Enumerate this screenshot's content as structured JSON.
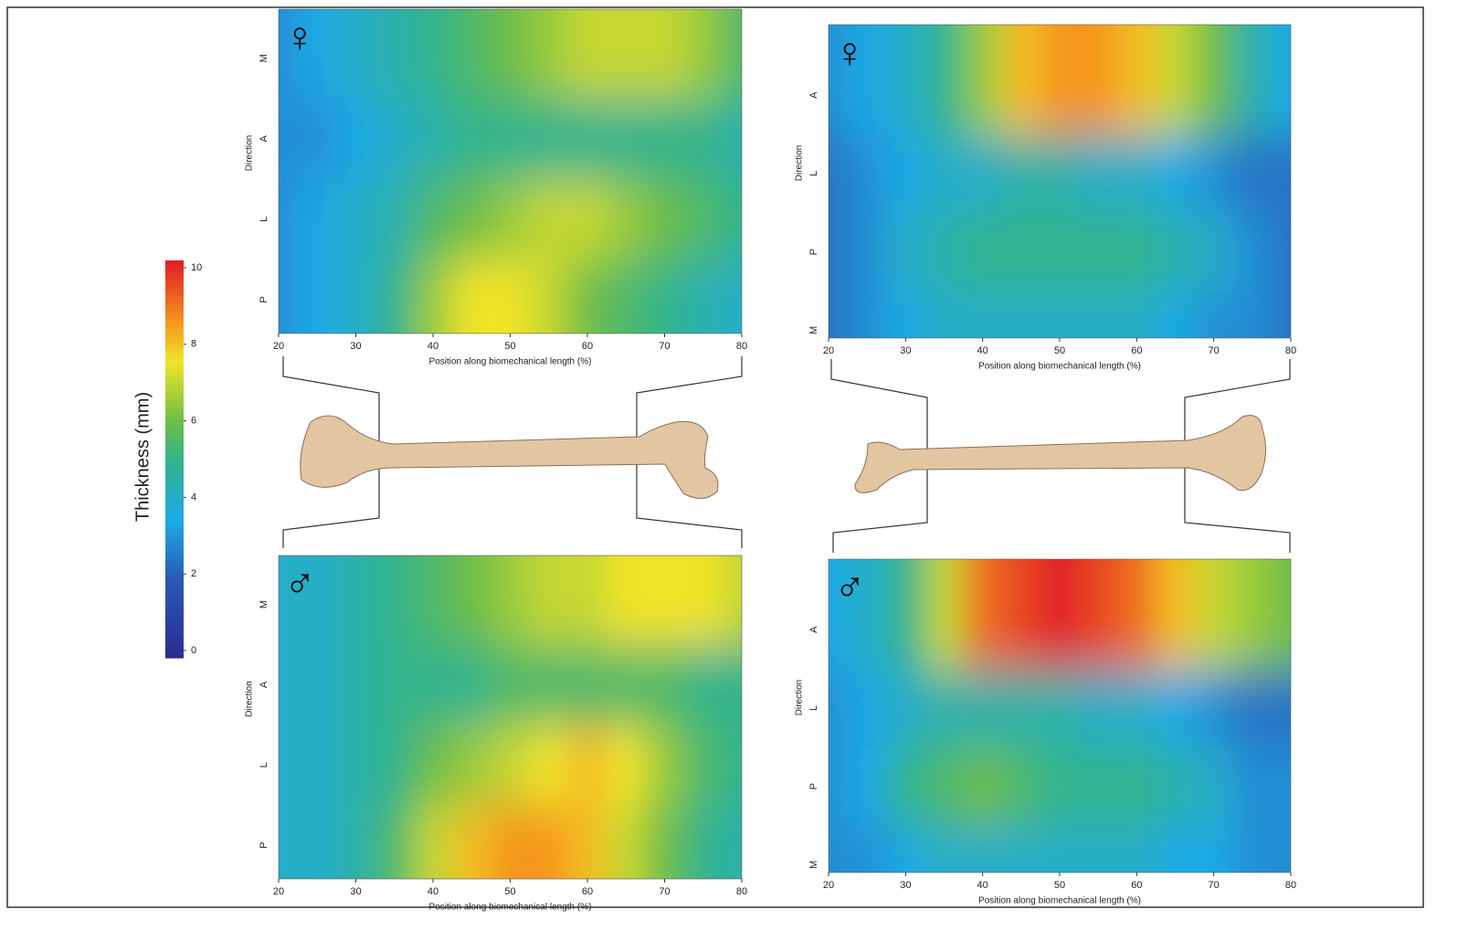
{
  "colorbar": {
    "label": "Thickness (mm)",
    "zlim": [
      0,
      10
    ],
    "zticks": [
      0,
      2,
      4,
      6,
      8,
      10
    ]
  },
  "chart_data": [
    {
      "type": "contour",
      "symbol": "♀",
      "xlabel": "Position along biomechanical length (%)",
      "ylabel": "Direction",
      "xlim": [
        20,
        80
      ],
      "xticks": [
        20,
        30,
        40,
        50,
        60,
        70,
        80
      ],
      "x": [
        20,
        25,
        30,
        35,
        40,
        45,
        50,
        55,
        60,
        65,
        70,
        75,
        80
      ],
      "y_categories": [
        "P",
        "L",
        "A",
        "M"
      ],
      "ylim": [
        -0.42,
        3.61
      ],
      "z": [
        [
          3,
          3.5,
          4,
          5,
          6.5,
          7.5,
          7.5,
          7,
          6,
          5.5,
          5,
          4.5,
          4
        ],
        [
          3,
          3.5,
          4,
          4.5,
          5.5,
          6,
          6.5,
          7,
          7,
          6.5,
          6,
          5.5,
          5
        ],
        [
          3,
          3,
          3.5,
          4,
          4.5,
          5,
          5,
          5,
          5,
          5,
          5,
          5,
          4.5
        ],
        [
          3,
          3.5,
          4,
          4.5,
          5,
          5.5,
          6,
          6.5,
          7,
          7,
          7,
          6.5,
          5.5
        ]
      ]
    },
    {
      "type": "contour",
      "symbol": "♀",
      "xlabel": "Position along biomechanical length (%)",
      "ylabel": "Direction",
      "xlim": [
        20,
        80
      ],
      "xticks": [
        20,
        30,
        40,
        50,
        60,
        70,
        80
      ],
      "x": [
        20,
        25,
        30,
        35,
        40,
        45,
        50,
        55,
        60,
        65,
        70,
        75,
        80
      ],
      "y_categories": [
        "M",
        "P",
        "L",
        "A"
      ],
      "ylim": [
        -0.1,
        3.9
      ],
      "z": [
        [
          2.5,
          3,
          3.5,
          4,
          4,
          4,
          4,
          4,
          4,
          3.5,
          3,
          3,
          2.5
        ],
        [
          2.5,
          3,
          4,
          4.5,
          5,
          5,
          5,
          5,
          5,
          4.5,
          4,
          3,
          2.5
        ],
        [
          2.5,
          3,
          3.5,
          4,
          4,
          4.5,
          4.5,
          4,
          4,
          3.5,
          3,
          2.5,
          2.5
        ],
        [
          3,
          3.5,
          4,
          5,
          6.5,
          8,
          8.5,
          8.5,
          8,
          7,
          6,
          4.5,
          3.5
        ]
      ]
    },
    {
      "type": "contour",
      "symbol": "♂",
      "xlabel": "Position along biomechanical length (%)",
      "ylabel": "Direction",
      "xlim": [
        20,
        80
      ],
      "xticks": [
        20,
        30,
        40,
        50,
        60,
        70,
        80
      ],
      "x": [
        20,
        25,
        30,
        35,
        40,
        45,
        50,
        55,
        60,
        65,
        70,
        75,
        80
      ],
      "y_categories": [
        "P",
        "L",
        "A",
        "M"
      ],
      "ylim": [
        -0.42,
        3.61
      ],
      "z": [
        [
          4,
          4,
          4.5,
          5.5,
          7,
          8,
          8.5,
          8.5,
          8,
          7,
          6,
          5,
          4.5
        ],
        [
          4,
          4,
          4.5,
          5,
          6,
          6.5,
          7,
          7.5,
          8,
          7.5,
          6.5,
          5.5,
          5
        ],
        [
          4,
          4,
          4.5,
          5,
          5,
          5,
          5.5,
          5.5,
          5.5,
          5.5,
          5.5,
          5,
          5
        ],
        [
          4,
          4,
          4.5,
          5,
          5.5,
          6,
          6.5,
          7,
          7,
          7.5,
          7.5,
          7.5,
          7
        ]
      ]
    },
    {
      "type": "contour",
      "symbol": "♂",
      "xlabel": "Position along biomechanical length (%)",
      "ylabel": "Direction",
      "xlim": [
        20,
        80
      ],
      "xticks": [
        20,
        30,
        40,
        50,
        60,
        70,
        80
      ],
      "x": [
        20,
        25,
        30,
        35,
        40,
        45,
        50,
        55,
        60,
        65,
        70,
        75,
        80
      ],
      "y_categories": [
        "M",
        "P",
        "L",
        "A"
      ],
      "ylim": [
        -0.1,
        3.9
      ],
      "z": [
        [
          3,
          3,
          3.5,
          4,
          4,
          4,
          4,
          4,
          4,
          3.5,
          3.5,
          3,
          3
        ],
        [
          3,
          3.5,
          5,
          5.5,
          6,
          5.5,
          5,
          5,
          5,
          4.5,
          4,
          3,
          3
        ],
        [
          3,
          3.5,
          4,
          4.5,
          4.5,
          4.5,
          4.5,
          4,
          4,
          3.5,
          3,
          2.5,
          2.5
        ],
        [
          3.5,
          4,
          5,
          7,
          9,
          9.5,
          10,
          9.5,
          9,
          8,
          7,
          6.5,
          6
        ]
      ]
    }
  ]
}
